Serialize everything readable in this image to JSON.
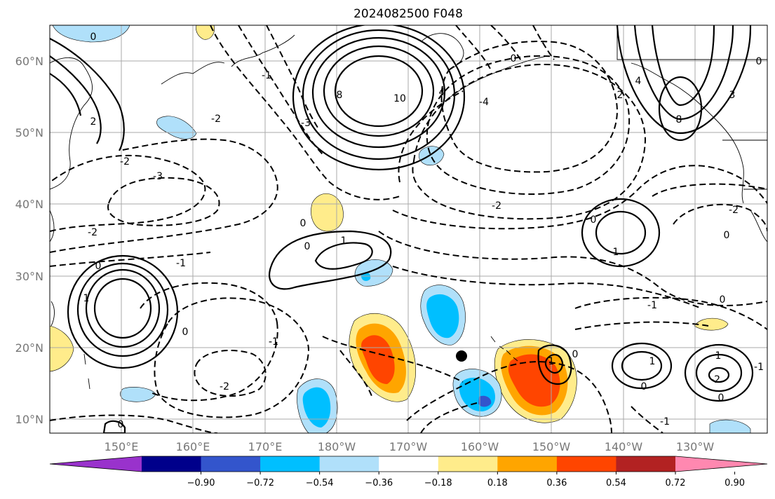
{
  "title": "2024082500 F048",
  "latitude_labels": [
    "60°N",
    "50°N",
    "40°N",
    "30°N",
    "20°N",
    "10°N"
  ],
  "longitude_labels": [
    "150°E",
    "160°E",
    "170°E",
    "180°W",
    "170°W",
    "160°W",
    "150°W",
    "140°W",
    "130°W"
  ],
  "colorbar": {
    "tick_labels": [
      "−0.90",
      "−0.72",
      "−0.54",
      "−0.36",
      "−0.18",
      "0.18",
      "0.36",
      "0.54",
      "0.72",
      "0.90"
    ],
    "colors": [
      "#9932cc",
      "#00008b",
      "#3355cc",
      "#00bfff",
      "#b0e0fa",
      "#ffffff",
      "#ffec8b",
      "#ffa500",
      "#ff4500",
      "#b22222",
      "#ff88b0"
    ]
  },
  "contour_labels": [
    "0",
    "-2",
    "2",
    "-3",
    "-2",
    "-1",
    "0",
    "1",
    "-2",
    "-1",
    "8",
    "10",
    "4",
    "-2",
    "-1",
    "-3",
    "-4",
    "-2",
    "2",
    "4",
    "3",
    "8",
    "0",
    "-2",
    "0",
    "1",
    "-1",
    "0",
    "-1",
    "0",
    "1",
    "-1",
    "-2",
    "1",
    "0",
    "1",
    "0",
    "0",
    "1",
    "-1"
  ],
  "marker": {
    "label": "black-dot",
    "color": "#000000"
  }
}
